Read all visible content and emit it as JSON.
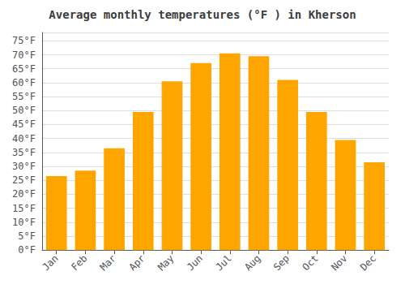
{
  "chart_data": {
    "type": "bar",
    "title": "Average monthly temperatures (°F ) in Kherson",
    "categories": [
      "Jan",
      "Feb",
      "Mar",
      "Apr",
      "May",
      "Jun",
      "Jul",
      "Aug",
      "Sep",
      "Oct",
      "Nov",
      "Dec"
    ],
    "values": [
      26.5,
      28.5,
      36.5,
      49.5,
      60.5,
      67,
      70.5,
      69.5,
      61,
      49.5,
      39.5,
      31.5
    ],
    "color": "#FFA500",
    "ylim": [
      0,
      78
    ],
    "yticks": [
      {
        "value": 0,
        "label": "0°F"
      },
      {
        "value": 5,
        "label": "5°F"
      },
      {
        "value": 10,
        "label": "10°F"
      },
      {
        "value": 15,
        "label": "15°F"
      },
      {
        "value": 20,
        "label": "20°F"
      },
      {
        "value": 25,
        "label": "25°F"
      },
      {
        "value": 30,
        "label": "30°F"
      },
      {
        "value": 35,
        "label": "35°F"
      },
      {
        "value": 40,
        "label": "40°F"
      },
      {
        "value": 45,
        "label": "45°F"
      },
      {
        "value": 50,
        "label": "50°F"
      },
      {
        "value": 55,
        "label": "55°F"
      },
      {
        "value": 60,
        "label": "60°F"
      },
      {
        "value": 65,
        "label": "65°F"
      },
      {
        "value": 70,
        "label": "70°F"
      },
      {
        "value": 75,
        "label": "75°F"
      }
    ],
    "grid": true
  }
}
